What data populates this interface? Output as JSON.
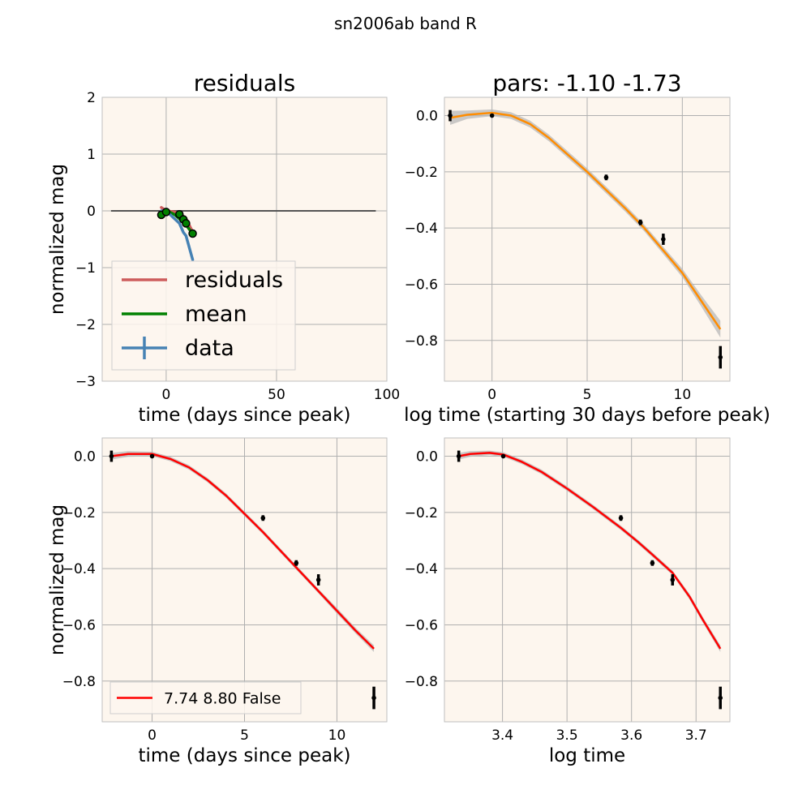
{
  "suptitle": "sn2006ab band R",
  "colors": {
    "background": "#fdf6ee",
    "grid": "#b0b0b0",
    "zero_line": "#555555",
    "residuals": "#cd5c5c",
    "mean": "#008000",
    "data": "#4682b4",
    "orange_fit": "#ff8c00",
    "red_fit": "#ff0000",
    "band": "#b8b8b8"
  },
  "chart_data": [
    {
      "id": "residuals",
      "type": "line",
      "title": "residuals",
      "xlabel": "time (days since peak)",
      "ylabel": "normalized mag",
      "xlim": [
        -29,
        100
      ],
      "ylim": [
        -3,
        2
      ],
      "xticks": [
        0,
        50,
        100
      ],
      "yticks": [
        -3,
        -2,
        -1,
        0,
        1,
        2
      ],
      "grid": true,
      "legend": {
        "placement": "lower-left",
        "entries": [
          "residuals",
          "mean",
          "data"
        ]
      },
      "zero_line": {
        "x": [
          -25,
          95
        ],
        "y": 0
      },
      "series": [
        {
          "name": "residuals",
          "style": "line",
          "color_key": "residuals",
          "x": [
            -2.2,
            0,
            6,
            7.8,
            9,
            12
          ],
          "y": [
            0.06,
            0.0,
            -0.03,
            -0.1,
            -0.14,
            -0.37
          ]
        },
        {
          "name": "mean",
          "style": "line",
          "color_key": "mean",
          "x": [
            -2.2,
            0,
            2,
            4,
            6,
            7.8,
            9,
            10,
            12
          ],
          "y": [
            -0.01,
            0.0,
            -0.03,
            -0.07,
            -0.14,
            -0.2,
            -0.25,
            -0.3,
            -0.4
          ]
        },
        {
          "name": "data",
          "style": "line",
          "color_key": "data",
          "x": [
            -2.2,
            0,
            6,
            7.8,
            9,
            12
          ],
          "y": [
            0.0,
            0.0,
            -0.22,
            -0.38,
            -0.44,
            -0.86
          ]
        },
        {
          "name": "",
          "style": "points",
          "color_key": "mean",
          "x": [
            -2.2,
            0,
            6,
            7.8,
            9,
            12
          ],
          "y": [
            -0.07,
            -0.02,
            -0.06,
            -0.15,
            -0.22,
            -0.4
          ]
        }
      ]
    },
    {
      "id": "pars",
      "type": "line",
      "title": "pars: -1.10 -1.73",
      "xlabel": "log time (starting 30 days before peak)",
      "ylabel": "",
      "xlim": [
        -2.5,
        12.5
      ],
      "ylim": [
        -0.945,
        0.065
      ],
      "xticks": [
        0,
        5,
        10
      ],
      "yticks": [
        0.0,
        -0.2,
        -0.4,
        -0.6,
        -0.8
      ],
      "grid": true,
      "fit": {
        "color_key": "orange_fit",
        "x": [
          -2.2,
          -1.3,
          0,
          1,
          2,
          3,
          4,
          5,
          6,
          7,
          8,
          9,
          10,
          11,
          12
        ],
        "y": [
          -0.008,
          0.003,
          0.01,
          0.0,
          -0.03,
          -0.08,
          -0.14,
          -0.2,
          -0.265,
          -0.33,
          -0.4,
          -0.48,
          -0.56,
          -0.66,
          -0.76
        ],
        "band_half_width": [
          0.025,
          0.015,
          0.012,
          0.012,
          0.012,
          0.012,
          0.012,
          0.012,
          0.012,
          0.012,
          0.012,
          0.013,
          0.015,
          0.02,
          0.03
        ]
      },
      "points": [
        {
          "x": -2.2,
          "y": 0.0,
          "err": 0.02
        },
        {
          "x": 0.0,
          "y": 0.0,
          "err": 0.0
        },
        {
          "x": 6.0,
          "y": -0.22,
          "err": 0.01
        },
        {
          "x": 7.8,
          "y": -0.38,
          "err": 0.01
        },
        {
          "x": 9.0,
          "y": -0.44,
          "err": 0.02
        },
        {
          "x": 12.0,
          "y": -0.86,
          "err": 0.04
        }
      ]
    },
    {
      "id": "linear-fit",
      "type": "line",
      "title": "",
      "xlabel": "time (days since peak)",
      "ylabel": "normalized mag",
      "xlim": [
        -2.7,
        12.7
      ],
      "ylim": [
        -0.945,
        0.065
      ],
      "xticks": [
        0,
        5,
        10
      ],
      "yticks": [
        0.0,
        -0.2,
        -0.4,
        -0.6,
        -0.8
      ],
      "grid": true,
      "legend": {
        "placement": "lower-left",
        "entries": [
          "7.74 8.80 False"
        ]
      },
      "fit": {
        "name": "7.74 8.80 False",
        "color_key": "red_fit",
        "x": [
          -2.2,
          -1.3,
          0,
          1,
          2,
          3,
          4,
          5,
          6,
          7,
          8,
          9,
          10,
          11,
          12
        ],
        "y": [
          0.0,
          0.008,
          0.008,
          -0.01,
          -0.04,
          -0.085,
          -0.14,
          -0.205,
          -0.27,
          -0.34,
          -0.41,
          -0.48,
          -0.55,
          -0.62,
          -0.685
        ],
        "band_half_width": [
          0.012,
          0.01,
          0.008,
          0.008,
          0.008,
          0.008,
          0.008,
          0.008,
          0.008,
          0.008,
          0.008,
          0.008,
          0.01,
          0.01,
          0.012
        ]
      },
      "points": [
        {
          "x": -2.2,
          "y": 0.0,
          "err": 0.02
        },
        {
          "x": 0.0,
          "y": 0.0,
          "err": 0.0
        },
        {
          "x": 6.0,
          "y": -0.22,
          "err": 0.01
        },
        {
          "x": 7.8,
          "y": -0.38,
          "err": 0.01
        },
        {
          "x": 9.0,
          "y": -0.44,
          "err": 0.02
        },
        {
          "x": 12.0,
          "y": -0.86,
          "err": 0.04
        }
      ]
    },
    {
      "id": "log-fit",
      "type": "line",
      "title": "",
      "xlabel": "log time",
      "ylabel": "",
      "xlim": [
        3.31,
        3.7525
      ],
      "ylim": [
        -0.945,
        0.065
      ],
      "xticks": [
        3.4,
        3.5,
        3.6,
        3.7
      ],
      "yticks": [
        0.0,
        -0.2,
        -0.4,
        -0.6,
        -0.8
      ],
      "grid": true,
      "fit": {
        "color_key": "red_fit",
        "x": [
          3.3322,
          3.35,
          3.38,
          3.4012,
          3.43,
          3.46,
          3.5,
          3.54,
          3.5835,
          3.61,
          3.6323,
          3.6636,
          3.69,
          3.71,
          3.7377
        ],
        "y": [
          0.0,
          0.008,
          0.012,
          0.006,
          -0.02,
          -0.055,
          -0.115,
          -0.18,
          -0.255,
          -0.305,
          -0.35,
          -0.415,
          -0.5,
          -0.58,
          -0.685
        ],
        "band_half_width": [
          0.012,
          0.01,
          0.008,
          0.008,
          0.008,
          0.008,
          0.008,
          0.008,
          0.008,
          0.008,
          0.008,
          0.008,
          0.01,
          0.01,
          0.012
        ]
      },
      "points": [
        {
          "x": 3.3322,
          "y": 0.0,
          "err": 0.02
        },
        {
          "x": 3.4012,
          "y": 0.0,
          "err": 0.0
        },
        {
          "x": 3.5835,
          "y": -0.22,
          "err": 0.01
        },
        {
          "x": 3.6323,
          "y": -0.38,
          "err": 0.01
        },
        {
          "x": 3.6636,
          "y": -0.44,
          "err": 0.02
        },
        {
          "x": 3.7377,
          "y": -0.86,
          "err": 0.04
        }
      ]
    }
  ]
}
